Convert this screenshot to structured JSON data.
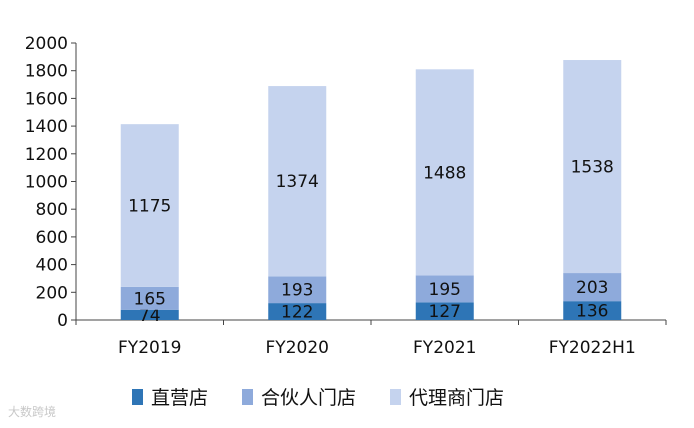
{
  "chart_data": {
    "type": "bar",
    "stacked": true,
    "categories": [
      "FY2019",
      "FY2020",
      "FY2021",
      "FY2022H1"
    ],
    "series": [
      {
        "name": "直营店",
        "values": [
          74,
          122,
          127,
          136
        ],
        "color": "#2e75b6"
      },
      {
        "name": "合伙人门店",
        "values": [
          165,
          193,
          195,
          203
        ],
        "color": "#8eaadb"
      },
      {
        "name": "代理商门店",
        "values": [
          1175,
          1374,
          1488,
          1538
        ],
        "color": "#c5d3ee"
      }
    ],
    "ylim": [
      0,
      2000
    ],
    "yticks": [
      0,
      200,
      400,
      600,
      800,
      1000,
      1200,
      1400,
      1600,
      1800,
      2000
    ],
    "grid": false,
    "legend_position": "bottom"
  },
  "watermark": "大数跨境"
}
